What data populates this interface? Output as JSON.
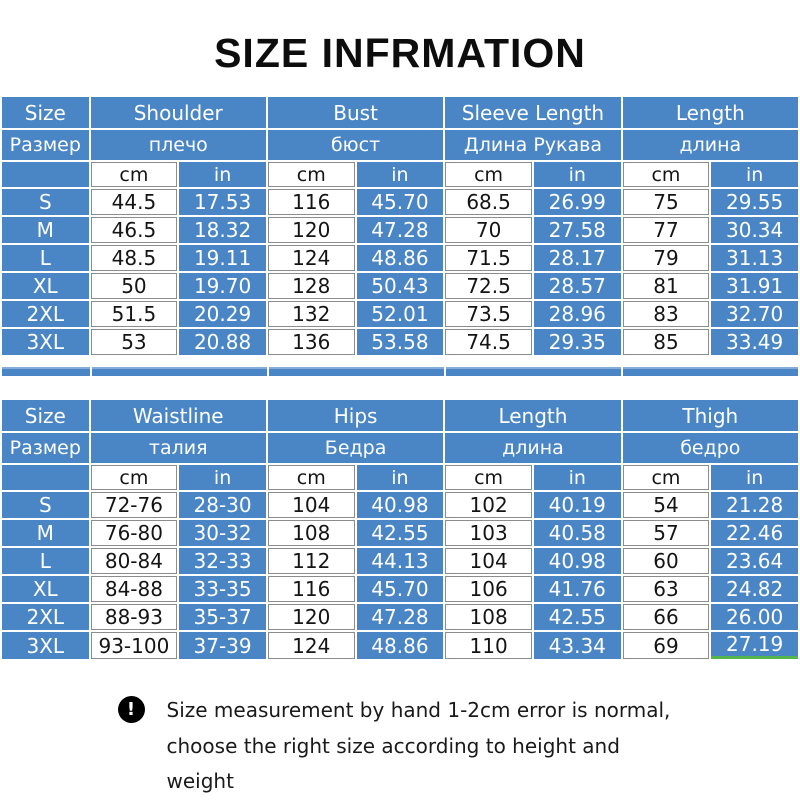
{
  "title": "SIZE INFRMATION",
  "colors": {
    "table_blue": "#4a86c6",
    "header_text": "#ffffff",
    "white_cell_border": "#8c8c8c",
    "green_accent": "#54b44e"
  },
  "units": {
    "cm": "cm",
    "in": "in"
  },
  "size_column": {
    "en": "Size",
    "ru": "Размер"
  },
  "tables": [
    {
      "name": "tops-size-table",
      "groups": [
        {
          "en": "Shoulder",
          "ru": "плечо"
        },
        {
          "en": "Bust",
          "ru": "бюст"
        },
        {
          "en": "Sleeve Length",
          "ru": "Длина Рукава"
        },
        {
          "en": "Length",
          "ru": "длина"
        }
      ],
      "rows": [
        {
          "size": "S",
          "values": [
            "44.5",
            "17.53",
            "116",
            "45.70",
            "68.5",
            "26.99",
            "75",
            "29.55"
          ]
        },
        {
          "size": "M",
          "values": [
            "46.5",
            "18.32",
            "120",
            "47.28",
            "70",
            "27.58",
            "77",
            "30.34"
          ]
        },
        {
          "size": "L",
          "values": [
            "48.5",
            "19.11",
            "124",
            "48.86",
            "71.5",
            "28.17",
            "79",
            "31.13"
          ]
        },
        {
          "size": "XL",
          "values": [
            "50",
            "19.70",
            "128",
            "50.43",
            "72.5",
            "28.57",
            "81",
            "31.91"
          ]
        },
        {
          "size": "2XL",
          "values": [
            "51.5",
            "20.29",
            "132",
            "52.01",
            "73.5",
            "28.96",
            "83",
            "32.70"
          ]
        },
        {
          "size": "3XL",
          "values": [
            "53",
            "20.88",
            "136",
            "53.58",
            "74.5",
            "29.35",
            "85",
            "33.49"
          ]
        }
      ],
      "green_edge_last_cell": false
    },
    {
      "name": "bottoms-size-table",
      "groups": [
        {
          "en": "Waistline",
          "ru": "талия"
        },
        {
          "en": "Hips",
          "ru": "Бедра"
        },
        {
          "en": "Length",
          "ru": "длина"
        },
        {
          "en": "Thigh",
          "ru": "бедро"
        }
      ],
      "rows": [
        {
          "size": "S",
          "values": [
            "72-76",
            "28-30",
            "104",
            "40.98",
            "102",
            "40.19",
            "54",
            "21.28"
          ]
        },
        {
          "size": "M",
          "values": [
            "76-80",
            "30-32",
            "108",
            "42.55",
            "103",
            "40.58",
            "57",
            "22.46"
          ]
        },
        {
          "size": "L",
          "values": [
            "80-84",
            "32-33",
            "112",
            "44.13",
            "104",
            "40.98",
            "60",
            "23.64"
          ]
        },
        {
          "size": "XL",
          "values": [
            "84-88",
            "33-35",
            "116",
            "45.70",
            "106",
            "41.76",
            "63",
            "24.82"
          ]
        },
        {
          "size": "2XL",
          "values": [
            "88-93",
            "35-37",
            "120",
            "47.28",
            "108",
            "42.55",
            "66",
            "26.00"
          ]
        },
        {
          "size": "3XL",
          "values": [
            "93-100",
            "37-39",
            "124",
            "48.86",
            "110",
            "43.34",
            "69",
            "27.19"
          ]
        }
      ],
      "green_edge_last_cell": true
    }
  ],
  "note": {
    "icon": "exclamation-circle-icon",
    "icon_glyph": "!",
    "line1": "Size measurement by hand 1-2cm error is normal,",
    "line2": "choose the right size according to height and weight"
  }
}
